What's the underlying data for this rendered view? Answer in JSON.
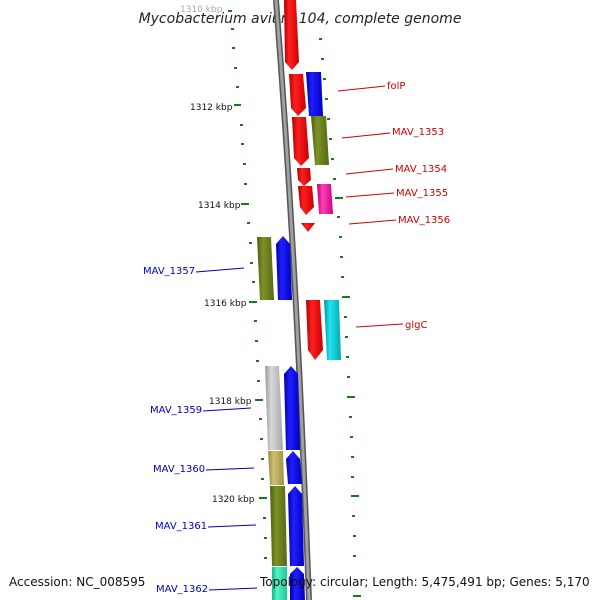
{
  "title": "Mycobacterium avium 104, complete genome",
  "footer": {
    "accession": "Accession: NC_008595",
    "summary": "Topology: circular; Length: 5,475,491 bp; Genes: 5,170"
  },
  "scale_labels": {
    "k1310": "1310 kbp",
    "k1312": "1312 kbp",
    "k1314": "1314 kbp",
    "k1316": "1316 kbp",
    "k1318": "1318 kbp",
    "k1320": "1320 kbp"
  },
  "gene_labels": {
    "folP": "folP",
    "mav1353": "MAV_1353",
    "mav1354": "MAV_1354",
    "mav1355": "MAV_1355",
    "mav1356": "MAV_1356",
    "glgC": "glgC",
    "mav1357": "MAV_1357",
    "mav1359": "MAV_1359",
    "mav1360": "MAV_1360",
    "mav1361": "MAV_1361",
    "mav1362": "MAV_1362"
  },
  "colors": {
    "right_strand_label": "#cc0000",
    "left_strand_label": "#0000bb",
    "scale_tick": "#1a7a1a",
    "backbone": "#8a8a8a",
    "red": "#ff0000",
    "blue": "#0000ff",
    "olive": "#6b7f1e",
    "magenta": "#ff1aa3",
    "cyan": "#00c4cc",
    "grey": "#bdbdbd",
    "khaki": "#b9a95c",
    "teal": "#30e0b0"
  }
}
